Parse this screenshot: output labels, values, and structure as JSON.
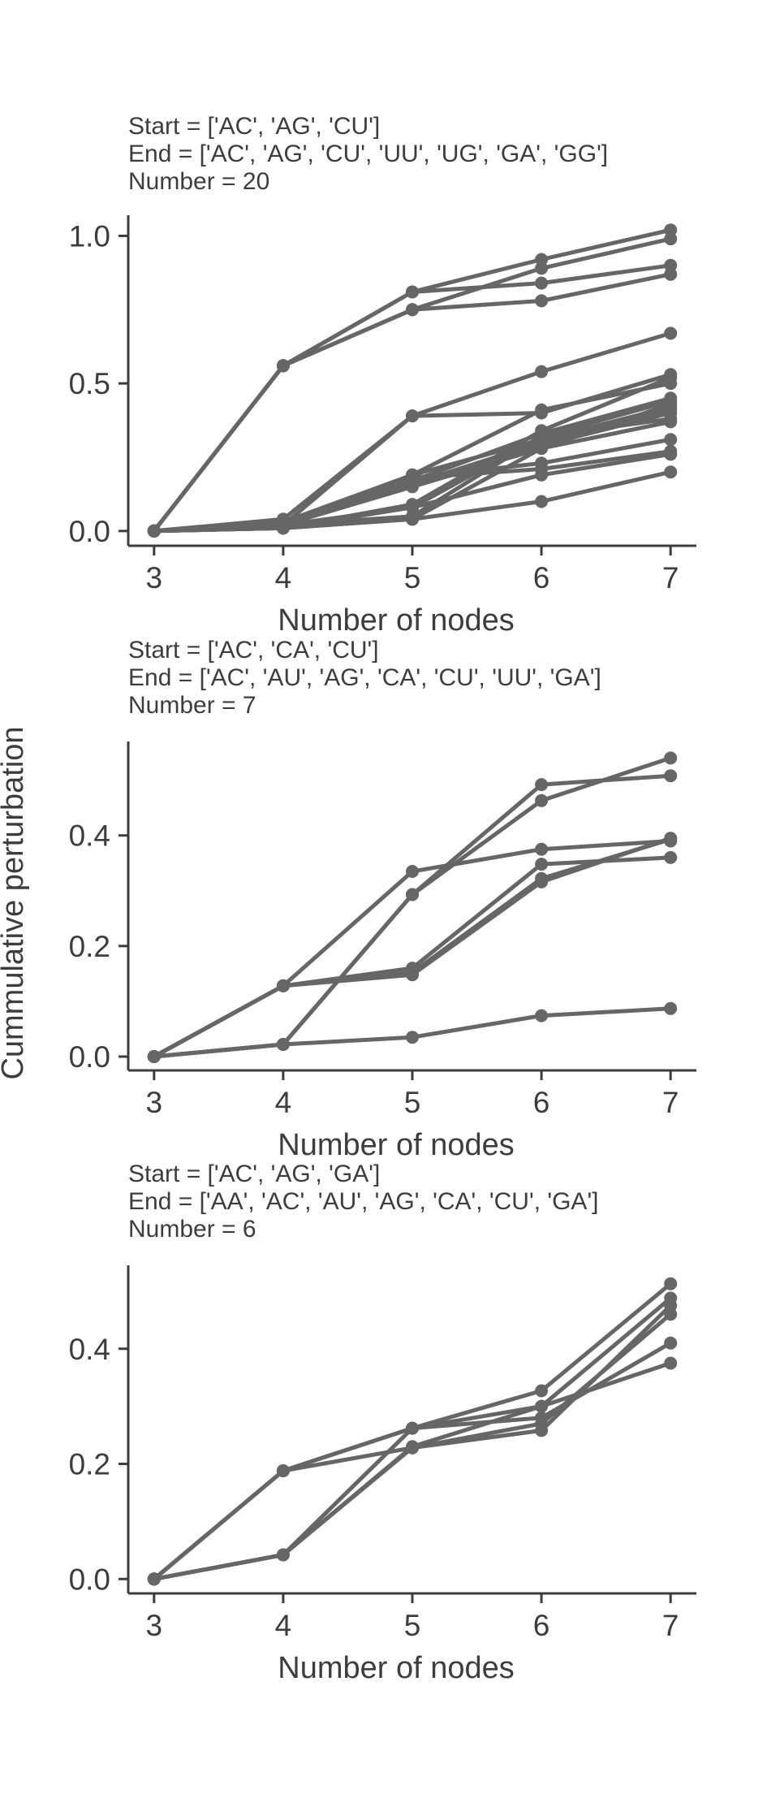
{
  "figure": {
    "shared_ylabel": "Cummulative perturbation"
  },
  "chart_data": [
    {
      "type": "line",
      "title_lines": [
        "Start = ['AC', 'AG', 'CU']",
        "End = ['AC', 'AG', 'CU', 'UU', 'UG', 'GA', 'GG']",
        "Number = 20"
      ],
      "xlabel": "Number of nodes",
      "ylabel": "",
      "x": [
        3,
        4,
        5,
        6,
        7
      ],
      "xlim": [
        2.8,
        7.2
      ],
      "ylim": [
        -0.05,
        1.07
      ],
      "xticks": [
        3,
        4,
        5,
        6,
        7
      ],
      "yticks": [
        0.0,
        0.5,
        1.0
      ],
      "ytick_labels": [
        "0.0",
        "0.5",
        "1.0"
      ],
      "grid": false,
      "line_color": "#666666",
      "series": [
        {
          "values": [
            0,
            0.56,
            0.81,
            0.92,
            1.02
          ]
        },
        {
          "values": [
            0,
            0.56,
            0.81,
            0.84,
            0.9
          ]
        },
        {
          "values": [
            0,
            0.56,
            0.75,
            0.89,
            0.99
          ]
        },
        {
          "values": [
            0,
            0.56,
            0.75,
            0.78,
            0.87
          ]
        },
        {
          "values": [
            0,
            0.04,
            0.39,
            0.54,
            0.67
          ]
        },
        {
          "values": [
            0,
            0.02,
            0.39,
            0.4,
            0.53
          ]
        },
        {
          "values": [
            0,
            0.02,
            0.19,
            0.41,
            0.5
          ]
        },
        {
          "values": [
            0,
            0.02,
            0.17,
            0.33,
            0.45
          ]
        },
        {
          "values": [
            0,
            0.03,
            0.19,
            0.31,
            0.42
          ]
        },
        {
          "values": [
            0,
            0.02,
            0.16,
            0.29,
            0.4
          ]
        },
        {
          "values": [
            0,
            0.03,
            0.18,
            0.23,
            0.31
          ]
        },
        {
          "values": [
            0,
            0.03,
            0.18,
            0.21,
            0.27
          ]
        },
        {
          "values": [
            0,
            0.01,
            0.09,
            0.34,
            0.52
          ]
        },
        {
          "values": [
            0,
            0.01,
            0.08,
            0.32,
            0.44
          ]
        },
        {
          "values": [
            0,
            0.02,
            0.05,
            0.32,
            0.38
          ]
        },
        {
          "values": [
            0,
            0.01,
            0.04,
            0.28,
            0.37
          ]
        },
        {
          "values": [
            0,
            0.01,
            0.04,
            0.1,
            0.2
          ]
        },
        {
          "values": [
            0,
            0.02,
            0.08,
            0.19,
            0.26
          ]
        },
        {
          "values": [
            0,
            0.03,
            0.16,
            0.3,
            0.41
          ]
        },
        {
          "values": [
            0,
            0.02,
            0.15,
            0.28,
            0.43
          ]
        }
      ]
    },
    {
      "type": "line",
      "title_lines": [
        "Start = ['AC', 'CA', 'CU']",
        "End = ['AC', 'AU', 'AG', 'CA', 'CU', 'UU', 'GA']",
        "Number = 7"
      ],
      "xlabel": "Number of nodes",
      "ylabel": "",
      "x": [
        3,
        4,
        5,
        6,
        7
      ],
      "xlim": [
        2.8,
        7.2
      ],
      "ylim": [
        -0.025,
        0.57
      ],
      "xticks": [
        3,
        4,
        5,
        6,
        7
      ],
      "yticks": [
        0.0,
        0.2,
        0.4
      ],
      "ytick_labels": [
        "0.0",
        "0.2",
        "0.4"
      ],
      "grid": false,
      "line_color": "#666666",
      "series": [
        {
          "values": [
            0,
            0.128,
            0.335,
            0.375,
            0.39
          ]
        },
        {
          "values": [
            0,
            0.022,
            0.293,
            0.492,
            0.508
          ]
        },
        {
          "values": [
            0,
            0.022,
            0.293,
            0.463,
            0.54
          ]
        },
        {
          "values": [
            0,
            0.128,
            0.16,
            0.348,
            0.36
          ]
        },
        {
          "values": [
            0,
            0.128,
            0.152,
            0.322,
            0.393
          ]
        },
        {
          "values": [
            0,
            0.128,
            0.148,
            0.316,
            0.395
          ]
        },
        {
          "values": [
            0,
            0.022,
            0.035,
            0.074,
            0.087
          ]
        }
      ]
    },
    {
      "type": "line",
      "title_lines": [
        "Start = ['AC', 'AG', 'GA']",
        "End = ['AA', 'AC', 'AU', 'AG', 'CA', 'CU', 'GA']",
        "Number = 6"
      ],
      "xlabel": "Number of nodes",
      "ylabel": "",
      "x": [
        3,
        4,
        5,
        6,
        7
      ],
      "xlim": [
        2.8,
        7.2
      ],
      "ylim": [
        -0.025,
        0.545
      ],
      "xticks": [
        3,
        4,
        5,
        6,
        7
      ],
      "yticks": [
        0.0,
        0.2,
        0.4
      ],
      "ytick_labels": [
        "0.0",
        "0.2",
        "0.4"
      ],
      "grid": false,
      "line_color": "#666666",
      "series": [
        {
          "values": [
            0,
            0.188,
            0.262,
            0.327,
            0.513
          ]
        },
        {
          "values": [
            0,
            0.188,
            0.262,
            0.28,
            0.41
          ]
        },
        {
          "values": [
            0,
            0.042,
            0.262,
            0.3,
            0.375
          ]
        },
        {
          "values": [
            0,
            0.042,
            0.23,
            0.3,
            0.488
          ]
        },
        {
          "values": [
            0,
            0.042,
            0.228,
            0.27,
            0.46
          ]
        },
        {
          "values": [
            0,
            0.188,
            0.228,
            0.258,
            0.475
          ]
        }
      ]
    }
  ]
}
